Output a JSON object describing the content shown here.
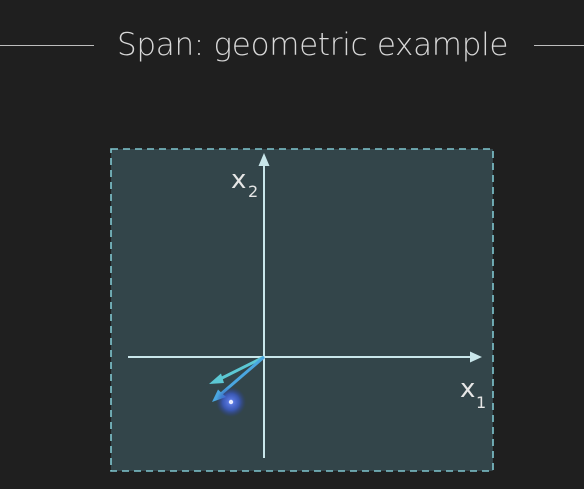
{
  "slide": {
    "title": "Span: geometric example"
  },
  "diagram": {
    "axes": {
      "x_label": "x",
      "x_subscript": "1",
      "y_label": "x",
      "y_subscript": "2"
    },
    "colors": {
      "background": "#1f1f1f",
      "span_fill": "#33454a",
      "span_border": "#7fc6cf",
      "axis": "#c9e6ea",
      "vector_a": "#5cc8d4",
      "vector_b": "#4aa6e0",
      "cursor_glow": "#3d5fd6"
    },
    "icons": [
      "cursor-dot-icon"
    ]
  }
}
